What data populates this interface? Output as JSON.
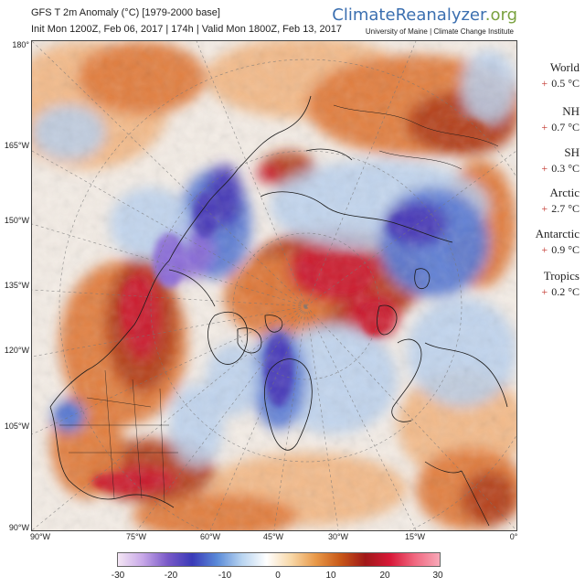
{
  "header": {
    "line1": "GFS T 2m Anomaly (°C) [1979-2000 base]",
    "line2": "Init Mon 1200Z, Feb 06, 2017 | 174h | Valid Mon 1800Z, Feb 13, 2017",
    "brand_climate": "Climate",
    "brand_reanalyzer": "Reanalyzer",
    "brand_org": ".org",
    "subbrand": "University of Maine | Climate Change Institute"
  },
  "axes": {
    "lat_labels": [
      "180°",
      "165°W",
      "150°W",
      "135°W",
      "120°W",
      "105°W",
      "90°W"
    ],
    "lon_labels": [
      "90°W",
      "75°W",
      "60°W",
      "45°W",
      "30°W",
      "15°W",
      "0°"
    ]
  },
  "stats": [
    {
      "name": "World",
      "value": "0.5 °C"
    },
    {
      "name": "NH",
      "value": "0.7 °C"
    },
    {
      "name": "SH",
      "value": "0.3 °C"
    },
    {
      "name": "Arctic",
      "value": "2.7 °C"
    },
    {
      "name": "Antarctic",
      "value": "0.9 °C"
    },
    {
      "name": "Tropics",
      "value": "0.2 °C"
    }
  ],
  "stat_sign": "+",
  "colorbar": {
    "ticks": [
      "-30",
      "-20",
      "-10",
      "0",
      "10",
      "20",
      "30"
    ],
    "colors": [
      "#f4e6f4",
      "#c8a8e8",
      "#7a5ac8",
      "#3a3ab8",
      "#5a8ad8",
      "#b8d4f0",
      "#ffffff",
      "#f8d8a8",
      "#e89848",
      "#c85818",
      "#a01818",
      "#d81838",
      "#f06880",
      "#f8a8b8"
    ]
  },
  "map_colors": {
    "warm_light": "#f2b27a",
    "warm_mid": "#e07a3a",
    "warm_dark": "#b4401a",
    "hot": "#cc1a30",
    "cool_light": "#b8d0ee",
    "cool_mid": "#5a7ad4",
    "cool_dark": "#4a3ab8",
    "purple": "#8a6ad8",
    "neutral": "#f4ede6"
  }
}
